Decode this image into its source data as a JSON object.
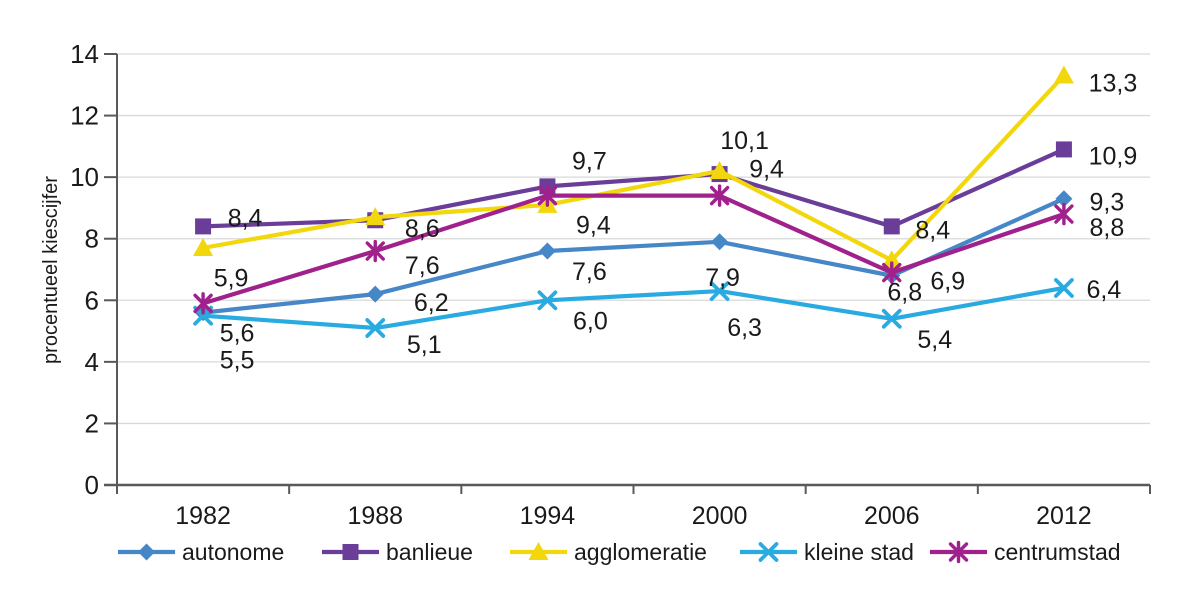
{
  "chart_data": {
    "type": "line",
    "title": "",
    "xlabel": "",
    "ylabel": "procentueel kiescijfer",
    "categories": [
      "1982",
      "1988",
      "1994",
      "2000",
      "2006",
      "2012"
    ],
    "ylim": [
      0,
      14
    ],
    "ytick_step": 2,
    "ytick_labels": [
      "0",
      "2",
      "4",
      "6",
      "8",
      "10",
      "12",
      "14"
    ],
    "grid": true,
    "legend_position": "bottom",
    "decimal_separator": ",",
    "series": [
      {
        "name": "autonome",
        "marker": "diamond",
        "color": "#4687c7",
        "values": [
          5.6,
          6.2,
          7.6,
          7.9,
          6.8,
          9.3
        ],
        "labels": [
          "5,6",
          "6,2",
          "7,6",
          "7,9",
          "6,8",
          "9,3"
        ]
      },
      {
        "name": "banlieue",
        "marker": "square",
        "color": "#6a3d99",
        "values": [
          8.4,
          8.6,
          9.7,
          10.1,
          8.4,
          10.9
        ],
        "labels": [
          "8,4",
          "8,6",
          "9,7",
          "10,1",
          "8,4",
          "10,9"
        ]
      },
      {
        "name": "agglomeratie",
        "marker": "triangle",
        "color": "#f2d70d",
        "values": [
          7.7,
          8.7,
          9.1,
          10.2,
          7.3,
          13.3
        ],
        "labels": [
          null,
          null,
          null,
          null,
          null,
          "13,3"
        ]
      },
      {
        "name": "kleine stad",
        "marker": "x",
        "color": "#29abe2",
        "values": [
          5.5,
          5.1,
          6.0,
          6.3,
          5.4,
          6.4
        ],
        "labels": [
          "5,5",
          "5,1",
          "6,0",
          "6,3",
          "5,4",
          "6,4"
        ]
      },
      {
        "name": "centrumstad",
        "marker": "asterisk",
        "color": "#a0218c",
        "values": [
          5.9,
          7.6,
          9.4,
          9.4,
          6.9,
          8.8
        ],
        "labels": [
          "5,9",
          "7,6",
          "9,4",
          "9,4",
          "6,9",
          "8,8"
        ]
      }
    ],
    "colors": {
      "axis": "#595959",
      "grid": "#d9d9d9",
      "text": "#1a1a1a"
    }
  }
}
